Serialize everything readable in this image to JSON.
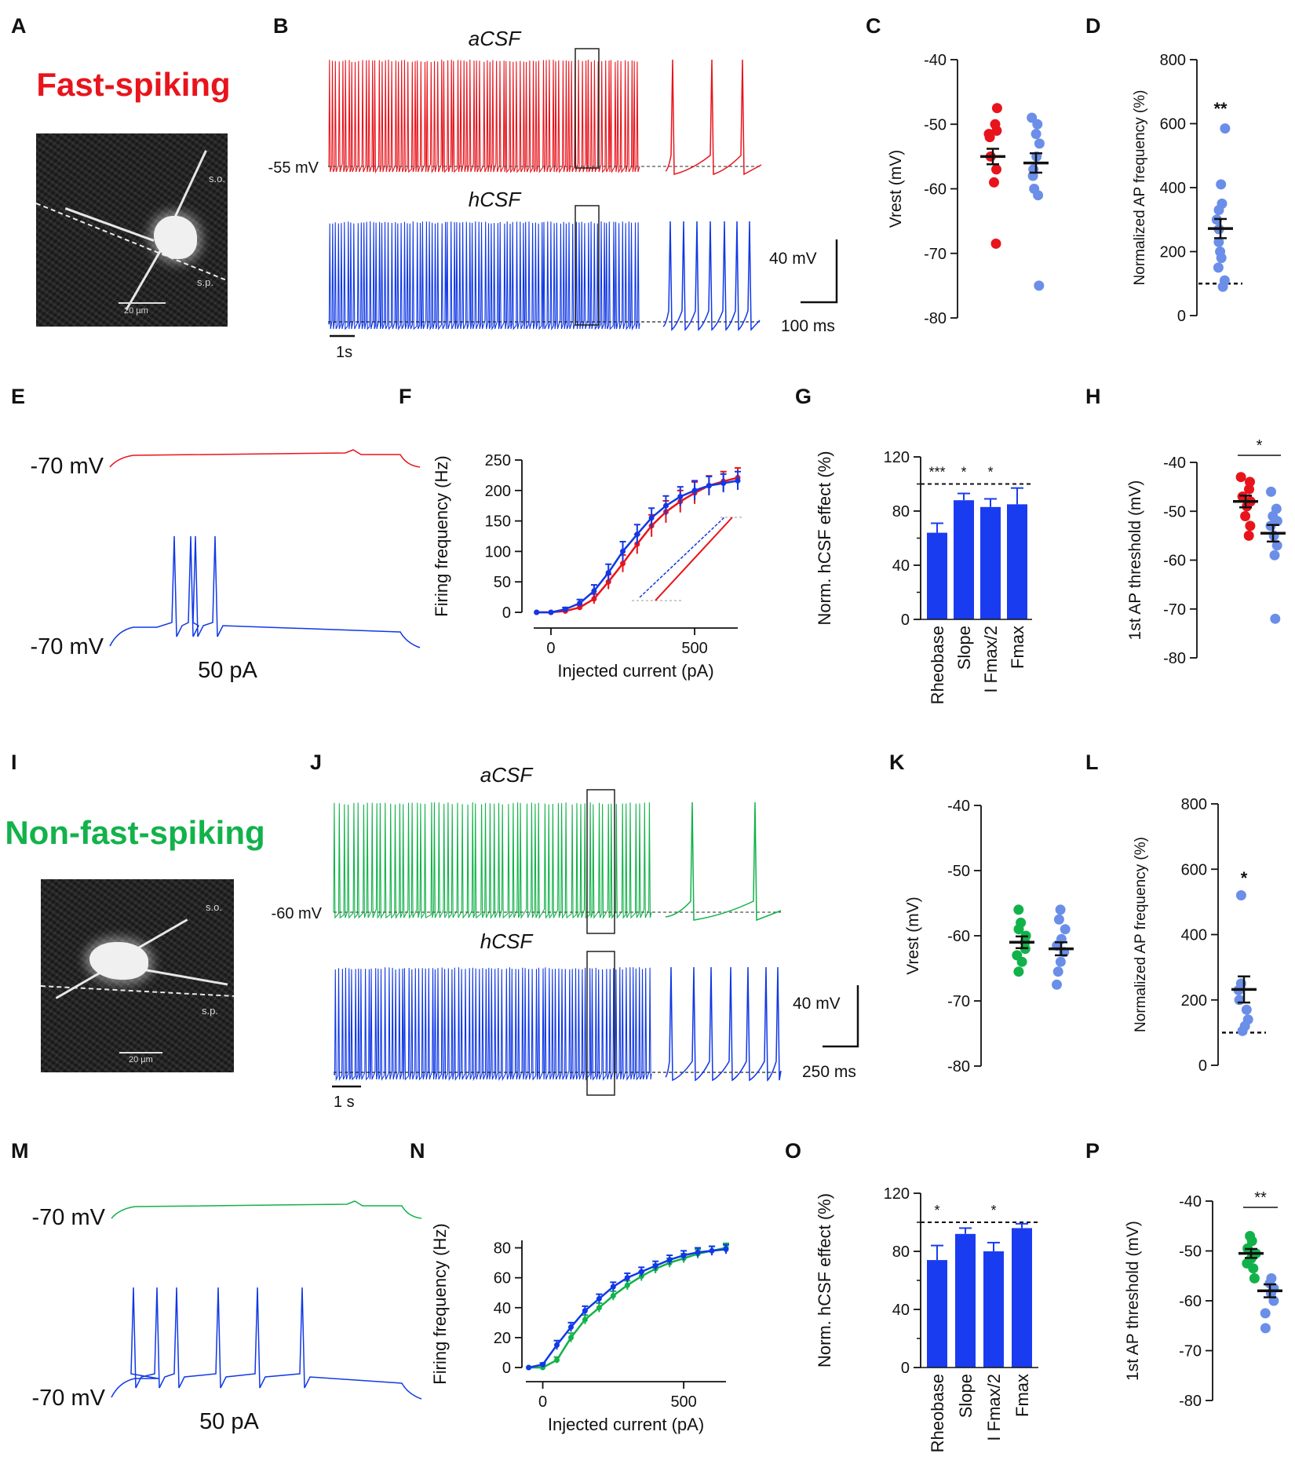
{
  "figure": {
    "panel_letters": [
      "A",
      "B",
      "C",
      "D",
      "E",
      "F",
      "G",
      "H",
      "I",
      "J",
      "K",
      "L",
      "M",
      "N",
      "O",
      "P"
    ],
    "colors": {
      "fast": "#e8141c",
      "nonfast": "#12b24a",
      "hcsf": "#1038e6",
      "dot_blue": "#6b8ee8",
      "bar_blue": "#1a3cf0"
    },
    "fast_spiking": {
      "title": "Fast-spiking",
      "micrograph": {
        "layers": [
          "s.o.",
          "s.p."
        ],
        "scale": "20 µm"
      },
      "traces_B": {
        "acsf_label": "aCSF",
        "hcsf_label": "hCSF",
        "vm_label": "-55 mV",
        "scale_mv": "40 mV",
        "scale_ms": "100 ms",
        "scale_s": "1s"
      },
      "ramp_E": {
        "top_vm": "-70 mV",
        "bottom_vm": "-70 mV",
        "current": "50 pA"
      }
    },
    "non_fast_spiking": {
      "title": "Non-fast-spiking",
      "micrograph": {
        "layers": [
          "s.o.",
          "s.p."
        ],
        "scale": "20 µm"
      },
      "traces_J": {
        "acsf_label": "aCSF",
        "hcsf_label": "hCSF",
        "vm_label": "-60 mV",
        "scale_mv": "40 mV",
        "scale_ms": "250 ms",
        "scale_s": "1 s"
      },
      "ramp_M": {
        "top_vm": "-70 mV",
        "bottom_vm": "-70 mV",
        "current": "50 pA"
      }
    }
  },
  "chart_data": [
    {
      "panel": "C",
      "type": "scatter",
      "ylabel": "Vrest (mV)",
      "ylim": [
        -80,
        -40
      ],
      "yticks": [
        -40,
        -50,
        -60,
        -70,
        -80
      ],
      "series": [
        {
          "name": "aCSF",
          "color": "#e8141c",
          "values": [
            -47.5,
            -50,
            -51,
            -51.5,
            -52,
            -55,
            -57,
            -59,
            -68.5
          ],
          "mean": -55,
          "sem": 1.2
        },
        {
          "name": "hCSF",
          "color": "#6b8ee8",
          "values": [
            -49,
            -50,
            -51.5,
            -53,
            -55,
            -57,
            -58,
            -60,
            -61,
            -75
          ],
          "mean": -56,
          "sem": 1.5
        }
      ]
    },
    {
      "panel": "D",
      "type": "scatter",
      "ylabel": "Normalized AP frequency (%)",
      "ylim": [
        0,
        800
      ],
      "yticks": [
        0,
        200,
        400,
        600,
        800
      ],
      "reference": 100,
      "significance": "**",
      "series": [
        {
          "name": "hCSF/aCSF",
          "color": "#6b8ee8",
          "values": [
            585,
            410,
            350,
            330,
            300,
            270,
            230,
            200,
            180,
            150,
            110,
            90
          ],
          "mean": 272,
          "sem": 30
        }
      ]
    },
    {
      "panel": "F",
      "type": "line",
      "xlabel": "Injected current (pA)",
      "ylabel": "Firing frequency (Hz)",
      "xlim": [
        -60,
        650
      ],
      "ylim": [
        0,
        250
      ],
      "xticks": [
        0,
        500
      ],
      "yticks": [
        0,
        50,
        100,
        150,
        200,
        250
      ],
      "x": [
        -50,
        0,
        50,
        100,
        150,
        200,
        250,
        300,
        350,
        400,
        450,
        500,
        550,
        600,
        650
      ],
      "series": [
        {
          "name": "aCSF",
          "color": "#e8141c",
          "values": [
            0,
            0,
            2,
            8,
            22,
            50,
            80,
            112,
            142,
            165,
            182,
            196,
            208,
            215,
            221
          ],
          "err": [
            0,
            0,
            2,
            4,
            8,
            12,
            14,
            16,
            18,
            18,
            18,
            18,
            16,
            16,
            16
          ]
        },
        {
          "name": "hCSF",
          "color": "#1038e6",
          "values": [
            0,
            0,
            5,
            15,
            35,
            65,
            100,
            128,
            155,
            175,
            190,
            200,
            208,
            212,
            216
          ],
          "err": [
            0,
            0,
            3,
            6,
            10,
            14,
            16,
            16,
            16,
            16,
            16,
            16,
            15,
            15,
            15
          ]
        }
      ]
    },
    {
      "panel": "G",
      "type": "bar",
      "ylabel": "Norm. hCSF effect (%)",
      "ylim": [
        0,
        120
      ],
      "yticks": [
        0,
        40,
        80,
        120
      ],
      "reference": 100,
      "categories": [
        "Rheobase",
        "Slope",
        "I Fmax/2",
        "Fmax"
      ],
      "values": [
        64,
        88,
        83,
        85
      ],
      "err": [
        7,
        5,
        6,
        12
      ],
      "significance": [
        "***",
        "*",
        "*",
        ""
      ]
    },
    {
      "panel": "H",
      "type": "scatter",
      "ylabel": "1st AP threshold (mV)",
      "ylim": [
        -80,
        -40
      ],
      "yticks": [
        -40,
        -50,
        -60,
        -70,
        -80
      ],
      "significance": "*",
      "series": [
        {
          "name": "aCSF",
          "color": "#e8141c",
          "values": [
            -43,
            -44,
            -45.5,
            -47,
            -48,
            -49,
            -51,
            -53,
            -55
          ],
          "mean": -48,
          "sem": 1.2
        },
        {
          "name": "hCSF",
          "color": "#6b8ee8",
          "values": [
            -46,
            -49.5,
            -51,
            -52,
            -53,
            -55,
            -57,
            -59,
            -72
          ],
          "mean": -54.5,
          "sem": 1.7
        }
      ]
    },
    {
      "panel": "K",
      "type": "scatter",
      "ylabel": "Vrest (mV)",
      "ylim": [
        -80,
        -40
      ],
      "yticks": [
        -40,
        -50,
        -60,
        -70,
        -80
      ],
      "series": [
        {
          "name": "aCSF",
          "color": "#12b24a",
          "values": [
            -56,
            -58,
            -59,
            -60,
            -61,
            -62,
            -63,
            -64,
            -65.5
          ],
          "mean": -61,
          "sem": 0.9
        },
        {
          "name": "hCSF",
          "color": "#6b8ee8",
          "values": [
            -56,
            -57.5,
            -59,
            -60.5,
            -61.5,
            -62.5,
            -64,
            -65.5,
            -67.5
          ],
          "mean": -62,
          "sem": 1.0
        }
      ]
    },
    {
      "panel": "L",
      "type": "scatter",
      "ylabel": "Normalized AP frequency (%)",
      "ylim": [
        0,
        800
      ],
      "yticks": [
        0,
        200,
        400,
        600,
        800
      ],
      "reference": 100,
      "significance": "*",
      "series": [
        {
          "name": "hCSF/aCSF",
          "color": "#6b8ee8",
          "values": [
            520,
            250,
            230,
            200,
            170,
            140,
            120,
            105
          ],
          "mean": 232,
          "sem": 40
        }
      ]
    },
    {
      "panel": "N",
      "type": "line",
      "xlabel": "Injected current (pA)",
      "ylabel": "Firing frequency (Hz)",
      "xlim": [
        -60,
        650
      ],
      "ylim": [
        0,
        85
      ],
      "xticks": [
        0,
        500
      ],
      "yticks": [
        0,
        20,
        40,
        60,
        80
      ],
      "x": [
        -50,
        0,
        50,
        100,
        150,
        200,
        250,
        300,
        350,
        400,
        450,
        500,
        550,
        600,
        650
      ],
      "series": [
        {
          "name": "aCSF",
          "color": "#12b24a",
          "values": [
            0,
            0,
            5,
            20,
            32,
            40,
            48,
            55,
            61,
            66,
            70,
            73,
            76,
            78,
            80
          ],
          "err": [
            0,
            0,
            2,
            3,
            3,
            3,
            3,
            3,
            3,
            3,
            3,
            3,
            3,
            3,
            3
          ]
        },
        {
          "name": "hCSF",
          "color": "#1038e6",
          "values": [
            0,
            2,
            15,
            27,
            38,
            46,
            54,
            60,
            64,
            68,
            72,
            75,
            77,
            78,
            79
          ],
          "err": [
            0,
            1,
            3,
            3,
            3,
            3,
            3,
            3,
            3,
            3,
            3,
            3,
            3,
            3,
            3
          ]
        }
      ]
    },
    {
      "panel": "O",
      "type": "bar",
      "ylabel": "Norm. hCSF effect (%)",
      "ylim": [
        0,
        120
      ],
      "yticks": [
        0,
        40,
        80,
        120
      ],
      "reference": 100,
      "categories": [
        "Rheobase",
        "Slope",
        "I Fmax/2",
        "Fmax"
      ],
      "values": [
        74,
        92,
        80,
        96
      ],
      "err": [
        10,
        4,
        6,
        3
      ],
      "significance": [
        "*",
        "",
        "*",
        ""
      ]
    },
    {
      "panel": "P",
      "type": "scatter",
      "ylabel": "1st AP threshold (mV)",
      "ylim": [
        -80,
        -40
      ],
      "yticks": [
        -40,
        -50,
        -60,
        -70,
        -80
      ],
      "significance": "**",
      "series": [
        {
          "name": "aCSF",
          "color": "#12b24a",
          "values": [
            -47,
            -48,
            -49.5,
            -50.5,
            -51.5,
            -52.5,
            -53.5,
            -55.5
          ],
          "mean": -50.5,
          "sem": 0.9
        },
        {
          "name": "hCSF",
          "color": "#6b8ee8",
          "values": [
            -55.5,
            -56.5,
            -57.5,
            -58.5,
            -60,
            -62.5,
            -65.5
          ],
          "mean": -58,
          "sem": 1.3
        }
      ]
    }
  ]
}
